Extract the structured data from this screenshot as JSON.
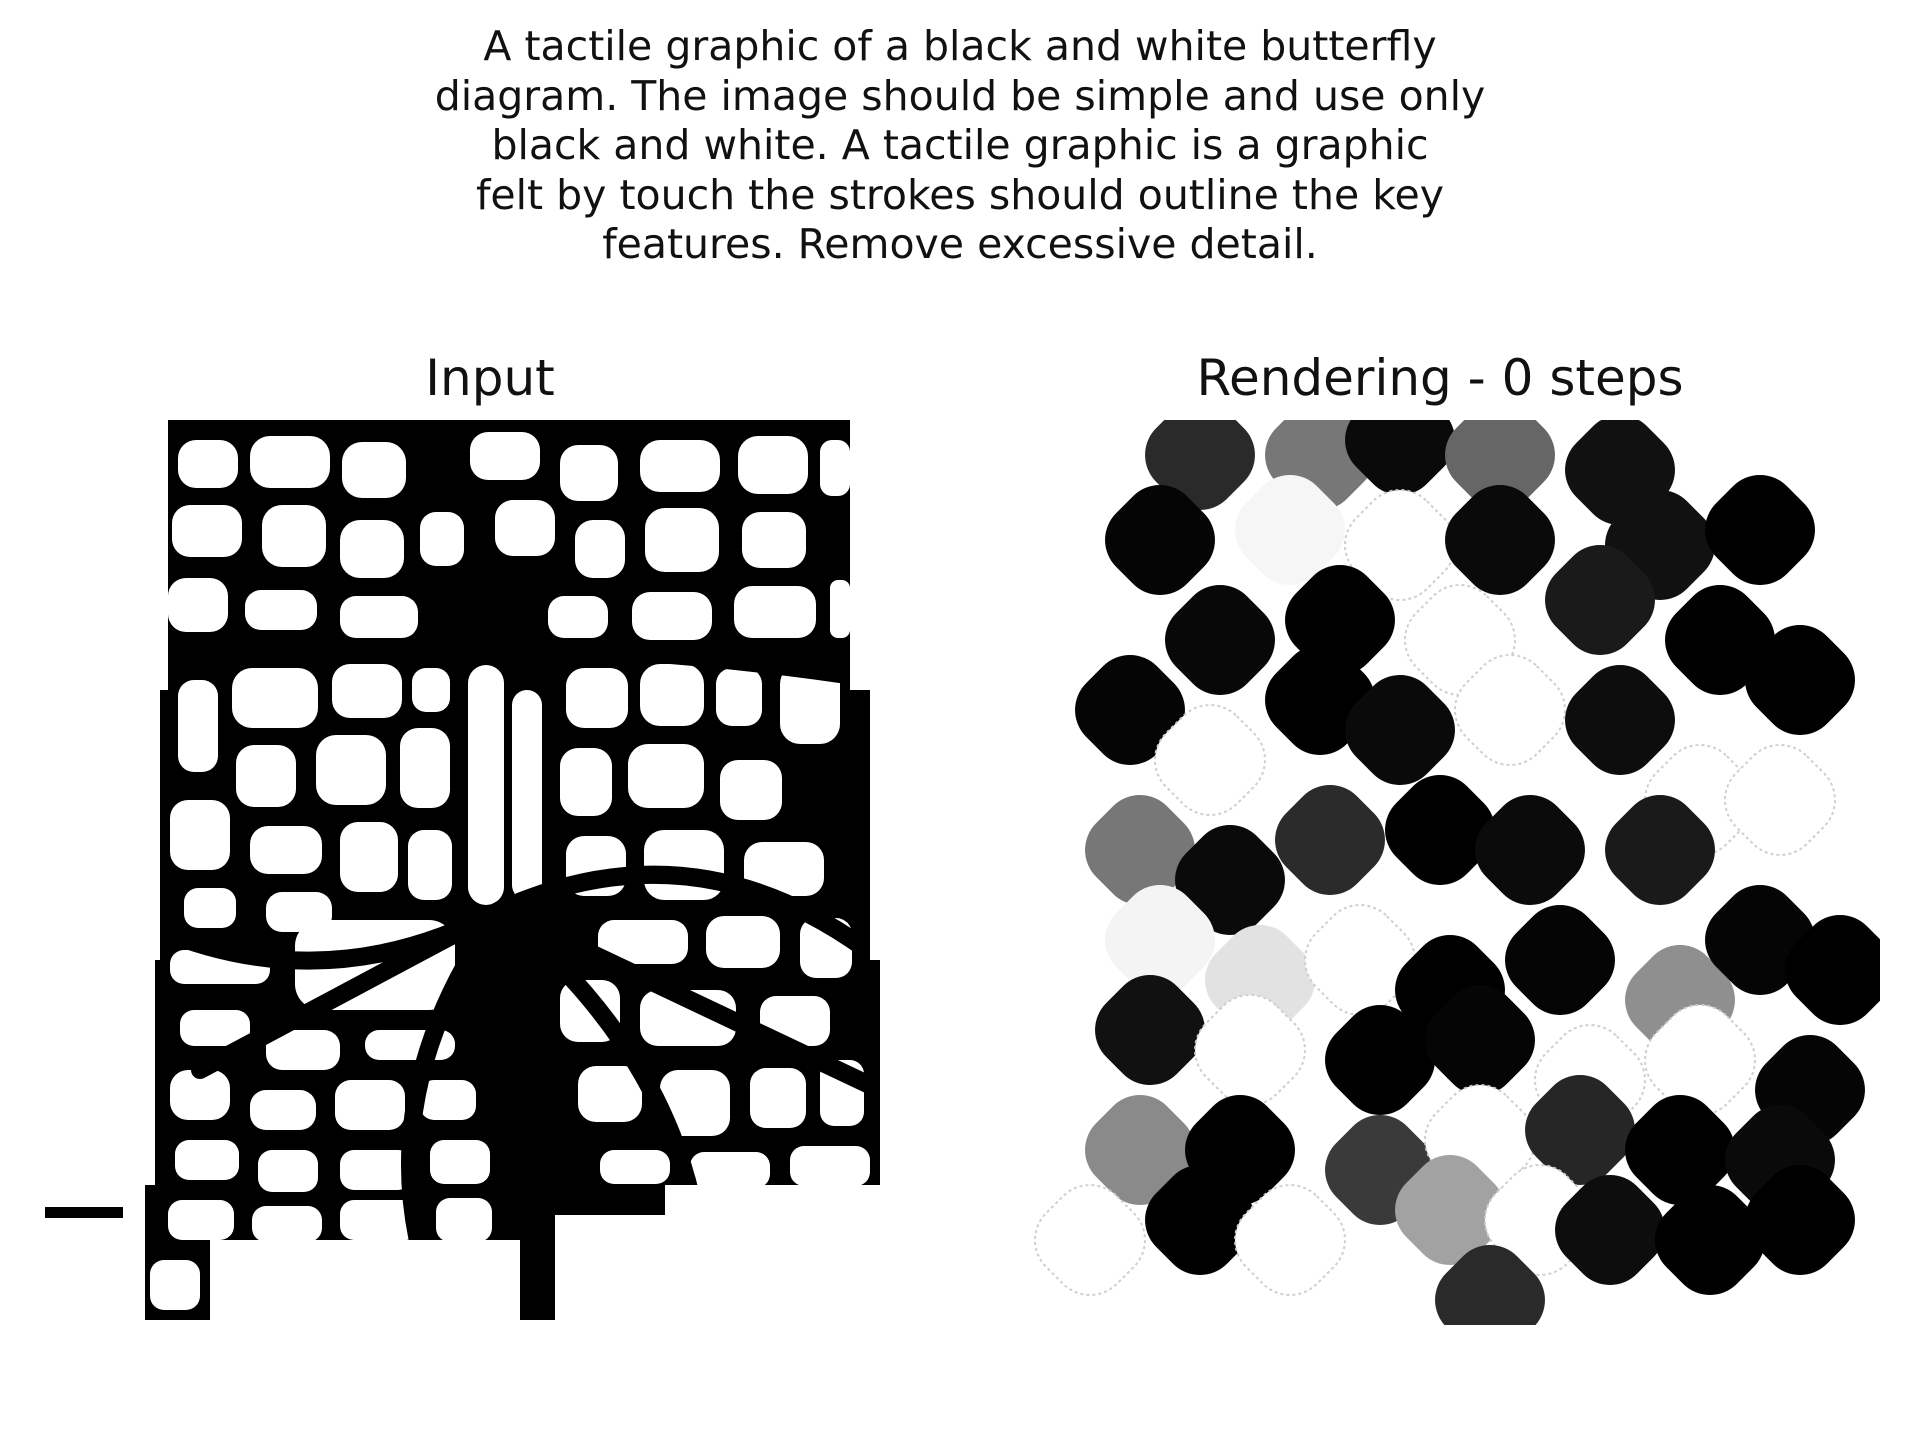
{
  "caption": "A tactile graphic of a black and white butterfly\ndiagram. The image should be simple and use only\nblack and white. A tactile graphic is a graphic\nfelt by touch the strokes should outline the key\nfeatures. Remove excessive detail.",
  "panels": {
    "input": {
      "title": "Input"
    },
    "rendering": {
      "title": "Rendering - 0 steps"
    }
  }
}
